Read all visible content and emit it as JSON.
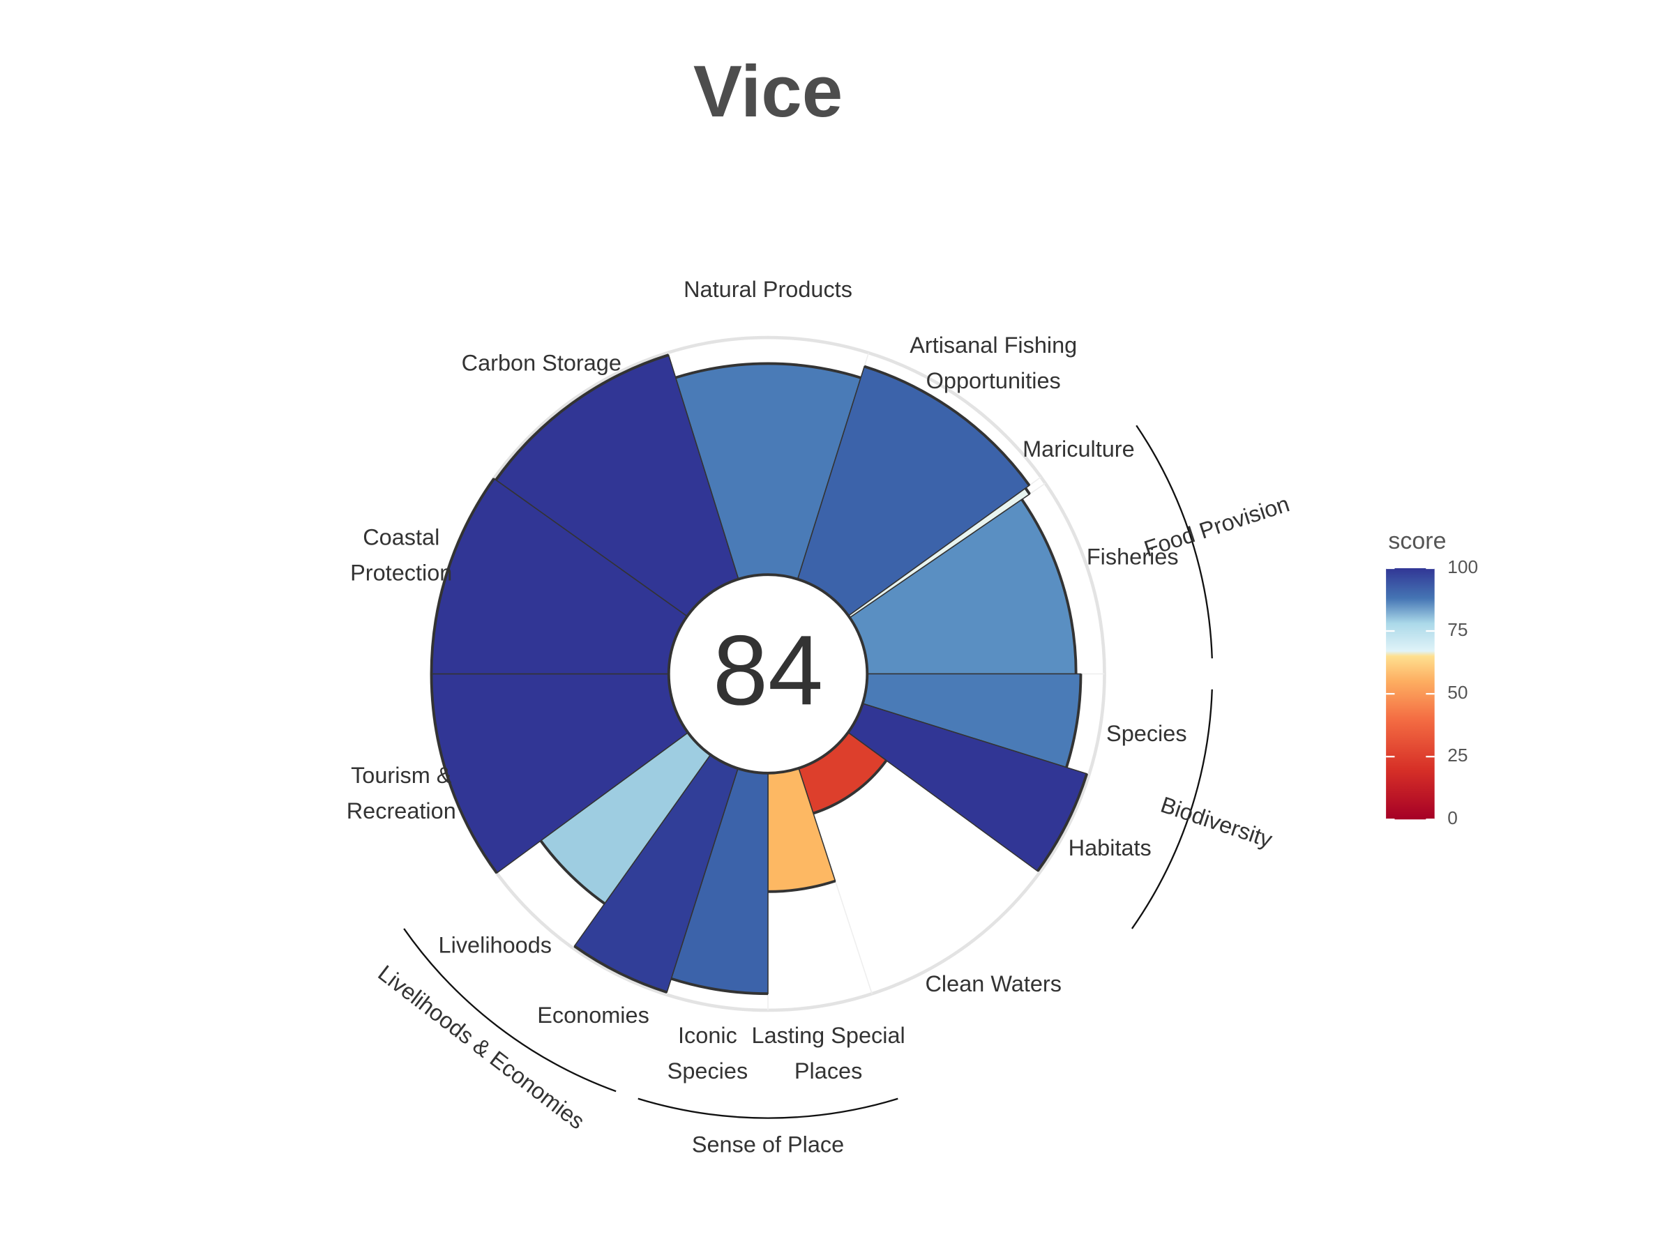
{
  "chart_data": {
    "type": "flower",
    "title": "Vice",
    "center_score": 84,
    "categories": [
      "Natural Products",
      "Artisanal Fishing\nOpportunities",
      "Mariculture",
      "Fisheries",
      "Species",
      "Habitats",
      "Clean Waters",
      "Lasting Special\nPlaces",
      "Iconic\nSpecies",
      "Economies",
      "Livelihoods",
      "Tourism &\nRecreation",
      "Coastal\nProtection",
      "Carbon Storage"
    ],
    "values": [
      89,
      94,
      92,
      88,
      90,
      99,
      20,
      50,
      93,
      99,
      77,
      100,
      100,
      99
    ],
    "colors": [
      "#4a7bb7",
      "#3c63aa",
      "#e8f4f0",
      "#5a8fc2",
      "#4a7bb7",
      "#313695",
      "#dd3f2c",
      "#fdb863",
      "#3c63aa",
      "#313e98",
      "#9ecde1",
      "#313695",
      "#313695",
      "#313695"
    ],
    "groups": [
      "Food Provision",
      "Biodiversity",
      "Sense of Place",
      "Livelihoods & Economies"
    ],
    "ylim": [
      0,
      100
    ],
    "legend": {
      "title": "score",
      "ticks": [
        0,
        25,
        50,
        75,
        100
      ]
    }
  }
}
